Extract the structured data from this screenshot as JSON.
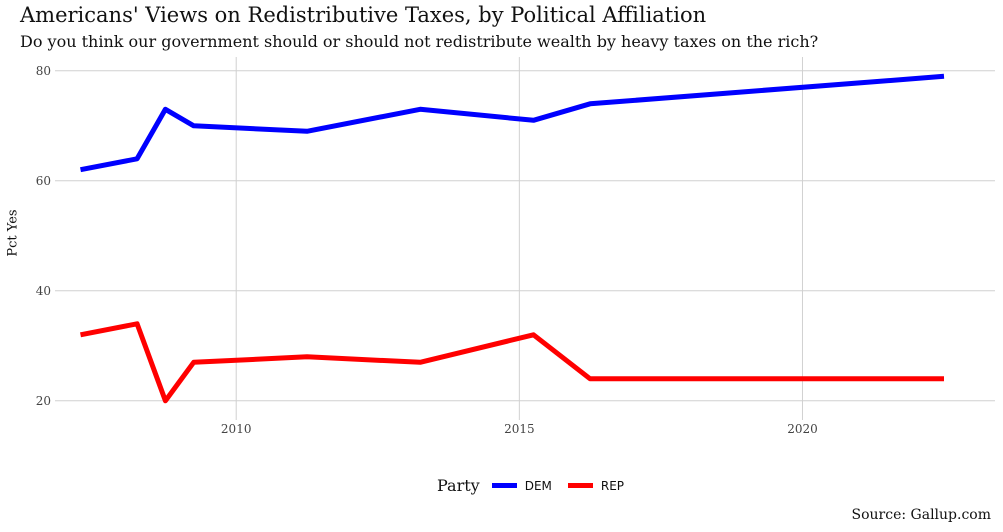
{
  "chart_data": {
    "type": "line",
    "title": "Americans' Views on Redistributive Taxes, by Political Affiliation",
    "subtitle": "Do you think our government should or should not redistribute wealth by heavy taxes on the rich?",
    "xlabel": "",
    "ylabel": "Pct Yes",
    "xlim": [
      2006.8,
      2023.4
    ],
    "ylim": [
      16.5,
      82.5
    ],
    "x_ticks": [
      2010,
      2015,
      2020
    ],
    "y_ticks": [
      20,
      40,
      60,
      80
    ],
    "grid": true,
    "legend": {
      "title": "Party",
      "position": "bottom"
    },
    "series": [
      {
        "name": "DEM",
        "color": "#0000ff",
        "x": [
          2007.25,
          2008.25,
          2008.75,
          2009.25,
          2011.25,
          2013.25,
          2015.25,
          2016.25,
          2022.5
        ],
        "y": [
          62,
          64,
          73,
          70,
          69,
          73,
          71,
          74,
          79
        ]
      },
      {
        "name": "REP",
        "color": "#ff0000",
        "x": [
          2007.25,
          2008.25,
          2008.75,
          2009.25,
          2011.25,
          2013.25,
          2015.25,
          2016.25,
          2022.5
        ],
        "y": [
          32,
          34,
          20,
          27,
          28,
          27,
          32,
          24,
          24
        ]
      }
    ],
    "caption": "Source: Gallup.com"
  }
}
